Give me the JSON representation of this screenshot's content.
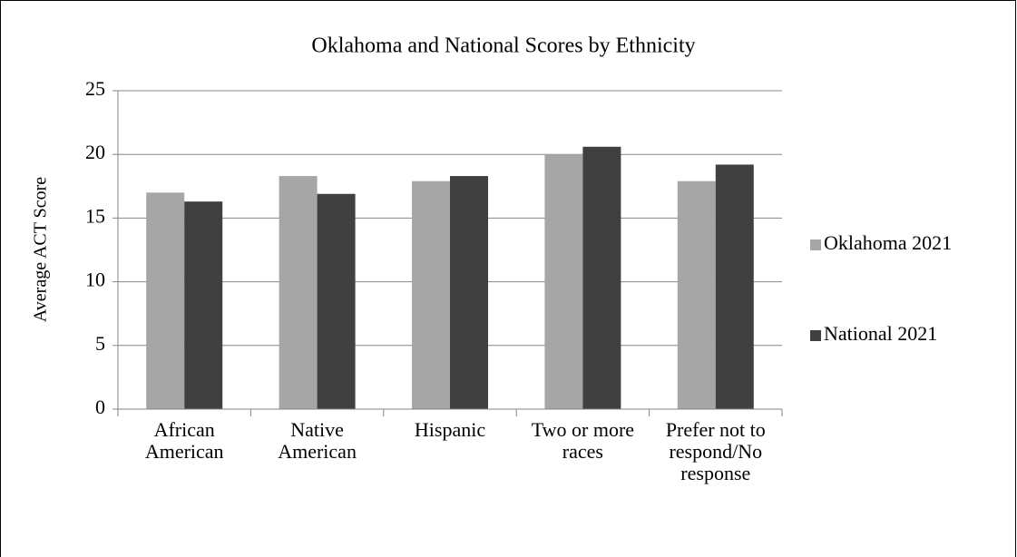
{
  "chart_data": {
    "type": "bar",
    "title": "Oklahoma and National Scores by Ethnicity",
    "y_label": "Average ACT Score",
    "categories": [
      "African American",
      "Native American",
      "Hispanic",
      "Two or more races",
      "Prefer not to respond/No response"
    ],
    "series": [
      {
        "name": "Oklahoma 2021",
        "color": "#a6a6a6",
        "values": [
          17.0,
          18.3,
          17.9,
          20.0,
          17.9
        ]
      },
      {
        "name": "National 2021",
        "color": "#404040",
        "values": [
          16.3,
          16.9,
          18.3,
          20.6,
          19.2
        ]
      }
    ],
    "ylim": [
      0,
      25
    ],
    "yticks": [
      0,
      5,
      10,
      15,
      20,
      25
    ],
    "grid": true,
    "legend": "right"
  }
}
